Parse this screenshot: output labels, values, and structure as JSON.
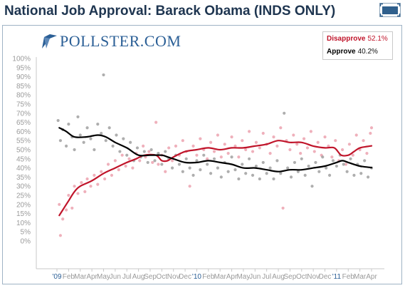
{
  "header": {
    "title": "National Job Approval: Barack Obama (INDS ONLY)"
  },
  "logo": {
    "text": "POLLSTER.COM",
    "color": "#2b5f96"
  },
  "legend": {
    "items": [
      {
        "name": "Disapprove",
        "value": "52.1%",
        "color": "#c0142a"
      },
      {
        "name": "Approve",
        "value": "40.2%",
        "color": "#000000"
      }
    ]
  },
  "icons": {
    "expand": "expand-icon"
  },
  "chart_data": {
    "type": "line",
    "title": "National Job Approval: Barack Obama (INDS ONLY)",
    "xlabel": "",
    "ylabel": "",
    "ylim": [
      0,
      100
    ],
    "y_ticks": [
      "0%",
      "5%",
      "10%",
      "15%",
      "20%",
      "25%",
      "30%",
      "35%",
      "40%",
      "45%",
      "50%",
      "55%",
      "60%",
      "65%",
      "70%",
      "75%",
      "80%",
      "85%",
      "90%",
      "95%",
      "100%"
    ],
    "x_range": [
      "2009-01",
      "2011-04"
    ],
    "x_ticks": [
      {
        "label": "'09",
        "month": 0,
        "year": true
      },
      {
        "label": "Feb",
        "month": 1
      },
      {
        "label": "Mar",
        "month": 2
      },
      {
        "label": "Apr",
        "month": 3
      },
      {
        "label": "May",
        "month": 4
      },
      {
        "label": "Jun",
        "month": 5
      },
      {
        "label": "Jul",
        "month": 6
      },
      {
        "label": "Aug",
        "month": 7
      },
      {
        "label": "Sep",
        "month": 8
      },
      {
        "label": "Oct",
        "month": 9
      },
      {
        "label": "Nov",
        "month": 10
      },
      {
        "label": "Dec",
        "month": 11
      },
      {
        "label": "'10",
        "month": 12,
        "year": true
      },
      {
        "label": "Feb",
        "month": 13
      },
      {
        "label": "Mar",
        "month": 14
      },
      {
        "label": "Apr",
        "month": 15
      },
      {
        "label": "May",
        "month": 16
      },
      {
        "label": "Jun",
        "month": 17
      },
      {
        "label": "Jul",
        "month": 18
      },
      {
        "label": "Aug",
        "month": 19
      },
      {
        "label": "Sep",
        "month": 20
      },
      {
        "label": "Oct",
        "month": 21
      },
      {
        "label": "Nov",
        "month": 22
      },
      {
        "label": "Dec",
        "month": 23
      },
      {
        "label": "'11",
        "month": 24,
        "year": true
      },
      {
        "label": "Feb",
        "month": 25
      },
      {
        "label": "Mar",
        "month": 26
      },
      {
        "label": "Apr",
        "month": 27
      }
    ],
    "grid": false,
    "legend_position": "top-right",
    "series": [
      {
        "name": "Disapprove",
        "color": "#c0142a",
        "dot_color": "#e88f9e",
        "trend": [
          [
            0.2,
            14
          ],
          [
            0.5,
            17
          ],
          [
            1,
            22
          ],
          [
            1.5,
            27
          ],
          [
            2,
            30
          ],
          [
            3,
            33
          ],
          [
            4,
            37
          ],
          [
            5,
            40
          ],
          [
            6,
            43
          ],
          [
            6.8,
            45
          ],
          [
            7.5,
            47
          ],
          [
            8.5,
            47
          ],
          [
            9,
            44
          ],
          [
            9.5,
            44
          ],
          [
            10,
            46
          ],
          [
            11,
            49
          ],
          [
            12,
            50
          ],
          [
            13,
            51
          ],
          [
            14,
            50
          ],
          [
            15,
            51
          ],
          [
            16,
            51
          ],
          [
            17,
            52
          ],
          [
            18,
            53
          ],
          [
            19,
            55
          ],
          [
            20,
            54
          ],
          [
            21,
            54
          ],
          [
            22,
            52
          ],
          [
            23,
            51
          ],
          [
            23.8,
            51
          ],
          [
            24.4,
            47
          ],
          [
            25,
            47
          ],
          [
            25.5,
            49
          ],
          [
            26,
            51
          ],
          [
            27,
            52.1
          ]
        ],
        "points": [
          [
            0.3,
            3
          ],
          [
            0.2,
            20
          ],
          [
            0.5,
            12
          ],
          [
            0.8,
            17
          ],
          [
            1.0,
            25
          ],
          [
            1.3,
            18
          ],
          [
            1.5,
            30
          ],
          [
            1.8,
            26
          ],
          [
            2.1,
            32
          ],
          [
            2.4,
            27
          ],
          [
            2.6,
            34
          ],
          [
            2.9,
            30
          ],
          [
            3.2,
            36
          ],
          [
            3.5,
            31
          ],
          [
            3.8,
            38
          ],
          [
            4.1,
            34
          ],
          [
            4.4,
            42
          ],
          [
            4.7,
            36
          ],
          [
            5.0,
            44
          ],
          [
            5.3,
            39
          ],
          [
            5.6,
            47
          ],
          [
            5.9,
            41
          ],
          [
            6.2,
            45
          ],
          [
            6.5,
            40
          ],
          [
            6.8,
            48
          ],
          [
            7.1,
            44
          ],
          [
            7.4,
            52
          ],
          [
            7.6,
            46
          ],
          [
            7.9,
            49
          ],
          [
            8.2,
            43
          ],
          [
            8.5,
            65
          ],
          [
            8.7,
            42
          ],
          [
            9.0,
            47
          ],
          [
            9.3,
            38
          ],
          [
            9.6,
            51
          ],
          [
            9.9,
            44
          ],
          [
            10.2,
            52
          ],
          [
            10.5,
            47
          ],
          [
            10.8,
            55
          ],
          [
            11.1,
            49
          ],
          [
            11.4,
            30
          ],
          [
            11.7,
            52
          ],
          [
            12.0,
            47
          ],
          [
            12.3,
            56
          ],
          [
            12.6,
            50
          ],
          [
            12.9,
            45
          ],
          [
            13.2,
            54
          ],
          [
            13.5,
            49
          ],
          [
            13.8,
            58
          ],
          [
            14.1,
            46
          ],
          [
            14.4,
            53
          ],
          [
            14.7,
            48
          ],
          [
            15.0,
            57
          ],
          [
            15.3,
            52
          ],
          [
            15.6,
            46
          ],
          [
            15.9,
            55
          ],
          [
            16.2,
            50
          ],
          [
            16.5,
            60
          ],
          [
            16.8,
            49
          ],
          [
            17.1,
            54
          ],
          [
            17.4,
            51
          ],
          [
            17.7,
            59
          ],
          [
            18.0,
            53
          ],
          [
            18.3,
            48
          ],
          [
            18.6,
            57
          ],
          [
            18.9,
            52
          ],
          [
            19.2,
            62
          ],
          [
            19.4,
            18
          ],
          [
            19.7,
            55
          ],
          [
            20.0,
            50
          ],
          [
            20.3,
            58
          ],
          [
            20.6,
            53
          ],
          [
            20.9,
            48
          ],
          [
            21.2,
            56
          ],
          [
            21.5,
            51
          ],
          [
            21.8,
            60
          ],
          [
            22.1,
            49
          ],
          [
            22.4,
            54
          ],
          [
            22.7,
            47
          ],
          [
            23.0,
            57
          ],
          [
            23.3,
            52
          ],
          [
            23.6,
            46
          ],
          [
            23.9,
            55
          ],
          [
            24.2,
            44
          ],
          [
            24.5,
            50
          ],
          [
            24.8,
            42
          ],
          [
            25.1,
            53
          ],
          [
            25.4,
            47
          ],
          [
            25.7,
            58
          ],
          [
            26.0,
            50
          ],
          [
            26.3,
            55
          ],
          [
            26.6,
            48
          ],
          [
            26.9,
            59
          ],
          [
            27.0,
            62
          ]
        ]
      },
      {
        "name": "Approve",
        "color": "#000000",
        "dot_color": "#8c8c8c",
        "trend": [
          [
            0.2,
            62
          ],
          [
            0.8,
            60
          ],
          [
            1.5,
            57
          ],
          [
            2.5,
            57
          ],
          [
            3.5,
            58
          ],
          [
            4.2,
            57
          ],
          [
            5,
            54
          ],
          [
            6,
            51
          ],
          [
            7,
            47
          ],
          [
            8,
            47
          ],
          [
            9,
            47
          ],
          [
            9.5,
            46
          ],
          [
            10,
            45
          ],
          [
            11,
            43
          ],
          [
            12,
            43
          ],
          [
            13,
            44
          ],
          [
            14,
            43
          ],
          [
            15,
            42
          ],
          [
            16,
            40
          ],
          [
            17,
            40
          ],
          [
            18,
            39
          ],
          [
            19,
            38
          ],
          [
            20,
            39
          ],
          [
            21,
            39
          ],
          [
            22,
            40
          ],
          [
            23,
            41
          ],
          [
            24,
            43
          ],
          [
            24.5,
            44
          ],
          [
            25,
            43
          ],
          [
            26,
            41
          ],
          [
            27,
            40.2
          ]
        ],
        "points": [
          [
            0.1,
            66
          ],
          [
            0.3,
            55
          ],
          [
            0.5,
            61
          ],
          [
            0.8,
            52
          ],
          [
            1.0,
            64
          ],
          [
            1.3,
            57
          ],
          [
            1.5,
            50
          ],
          [
            1.8,
            68
          ],
          [
            2.0,
            58
          ],
          [
            2.3,
            54
          ],
          [
            2.6,
            62
          ],
          [
            2.9,
            56
          ],
          [
            3.2,
            50
          ],
          [
            3.5,
            64
          ],
          [
            3.8,
            59
          ],
          [
            4.0,
            91
          ],
          [
            4.2,
            55
          ],
          [
            4.5,
            62
          ],
          [
            4.8,
            52
          ],
          [
            5.1,
            58
          ],
          [
            5.4,
            49
          ],
          [
            5.7,
            56
          ],
          [
            6.0,
            47
          ],
          [
            6.3,
            54
          ],
          [
            6.6,
            44
          ],
          [
            6.9,
            51
          ],
          [
            7.2,
            46
          ],
          [
            7.5,
            49
          ],
          [
            7.8,
            43
          ],
          [
            8.1,
            50
          ],
          [
            8.4,
            44
          ],
          [
            8.7,
            48
          ],
          [
            9.0,
            42
          ],
          [
            9.3,
            49
          ],
          [
            9.6,
            45
          ],
          [
            9.9,
            40
          ],
          [
            10.2,
            47
          ],
          [
            10.5,
            42
          ],
          [
            10.8,
            38
          ],
          [
            11.1,
            45
          ],
          [
            11.4,
            40
          ],
          [
            11.7,
            36
          ],
          [
            12.0,
            44
          ],
          [
            12.3,
            39
          ],
          [
            12.6,
            47
          ],
          [
            12.9,
            42
          ],
          [
            13.2,
            37
          ],
          [
            13.5,
            45
          ],
          [
            13.8,
            40
          ],
          [
            14.1,
            35
          ],
          [
            14.4,
            43
          ],
          [
            14.7,
            38
          ],
          [
            15.0,
            46
          ],
          [
            15.3,
            39
          ],
          [
            15.6,
            34
          ],
          [
            15.9,
            42
          ],
          [
            16.2,
            37
          ],
          [
            16.5,
            45
          ],
          [
            16.8,
            36
          ],
          [
            17.1,
            41
          ],
          [
            17.4,
            34
          ],
          [
            17.7,
            43
          ],
          [
            18.0,
            37
          ],
          [
            18.3,
            40
          ],
          [
            18.6,
            34
          ],
          [
            18.9,
            44
          ],
          [
            19.2,
            37
          ],
          [
            19.5,
            70
          ],
          [
            19.8,
            40
          ],
          [
            20.1,
            35
          ],
          [
            20.4,
            43
          ],
          [
            20.7,
            38
          ],
          [
            21.0,
            45
          ],
          [
            21.3,
            36
          ],
          [
            21.6,
            41
          ],
          [
            21.9,
            30
          ],
          [
            22.2,
            43
          ],
          [
            22.5,
            38
          ],
          [
            22.8,
            46
          ],
          [
            23.1,
            40
          ],
          [
            23.4,
            36
          ],
          [
            23.7,
            44
          ],
          [
            24.0,
            41
          ],
          [
            24.3,
            47
          ],
          [
            24.6,
            42
          ],
          [
            24.9,
            38
          ],
          [
            25.2,
            45
          ],
          [
            25.5,
            36
          ],
          [
            25.8,
            42
          ],
          [
            26.1,
            37
          ],
          [
            26.4,
            44
          ],
          [
            26.7,
            35
          ],
          [
            27.0,
            40
          ]
        ]
      }
    ]
  }
}
